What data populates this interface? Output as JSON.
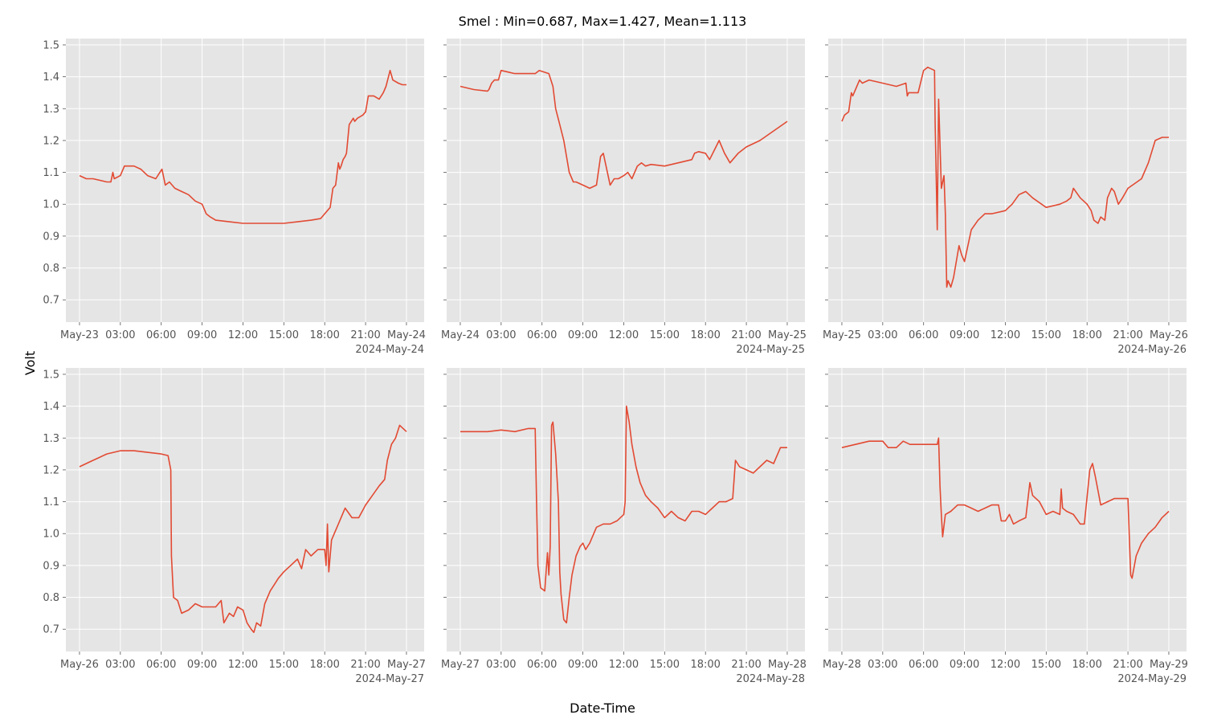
{
  "figure": {
    "title": "Smel : Min=0.687, Max=1.427, Mean=1.113",
    "xlabel": "Date-Time",
    "ylabel": "Volt"
  },
  "colors": {
    "line": "#E24A33",
    "panel_bg": "#E5E5E5",
    "grid": "#FFFFFF",
    "tick_text": "#555555"
  },
  "chart_data": {
    "type": "line",
    "layout": "2x3 small multiples, shared y axis",
    "ylim": [
      0.63,
      1.52
    ],
    "yticks": [
      0.7,
      0.8,
      0.9,
      1.0,
      1.1,
      1.2,
      1.3,
      1.4,
      1.5
    ],
    "ytick_labels": [
      "0.7",
      "0.8",
      "0.9",
      "1.0",
      "1.1",
      "1.2",
      "1.3",
      "1.4",
      "1.5"
    ],
    "x_unit": "hours since panel start (00:00)",
    "xlim": [
      -1,
      25.3
    ],
    "xticks": [
      0,
      3,
      6,
      9,
      12,
      15,
      18,
      21,
      24
    ],
    "grid": true,
    "panels": [
      {
        "offset_label": "2024-May-24",
        "xtick_labels": [
          "May-23",
          "03:00",
          "06:00",
          "09:00",
          "12:00",
          "15:00",
          "18:00",
          "21:00",
          "May-24"
        ],
        "x": [
          0,
          0.5,
          1,
          2,
          2.3,
          2.45,
          2.55,
          3,
          3.3,
          3.6,
          4,
          4.5,
          5,
          5.6,
          5.9,
          6.05,
          6.3,
          6.6,
          7,
          7.5,
          8,
          8.5,
          9,
          9.3,
          9.6,
          10,
          11,
          12,
          13,
          14,
          15,
          16,
          17,
          17.7,
          18,
          18.4,
          18.6,
          18.8,
          19,
          19.1,
          19.2,
          19.35,
          19.5,
          19.6,
          19.8,
          20.1,
          20.2,
          20.4,
          20.8,
          21,
          21.2,
          21.4,
          21.6,
          22,
          22.3,
          22.5,
          22.8,
          23,
          23.4,
          23.7,
          24
        ],
        "y": [
          1.09,
          1.08,
          1.08,
          1.07,
          1.07,
          1.1,
          1.08,
          1.09,
          1.12,
          1.12,
          1.12,
          1.11,
          1.09,
          1.08,
          1.1,
          1.11,
          1.06,
          1.07,
          1.05,
          1.04,
          1.03,
          1.01,
          1.0,
          0.97,
          0.96,
          0.95,
          0.945,
          0.94,
          0.94,
          0.94,
          0.94,
          0.945,
          0.95,
          0.955,
          0.97,
          0.99,
          1.05,
          1.06,
          1.13,
          1.11,
          1.12,
          1.14,
          1.15,
          1.16,
          1.25,
          1.27,
          1.26,
          1.27,
          1.28,
          1.29,
          1.34,
          1.34,
          1.34,
          1.33,
          1.35,
          1.37,
          1.42,
          1.39,
          1.38,
          1.375,
          1.375
        ]
      },
      {
        "offset_label": "2024-May-25",
        "xtick_labels": [
          "May-24",
          "03:00",
          "06:00",
          "09:00",
          "12:00",
          "15:00",
          "18:00",
          "21:00",
          "May-25"
        ],
        "x": [
          0,
          1,
          2,
          2.1,
          2.3,
          2.5,
          2.8,
          3,
          4,
          5,
          5.5,
          5.8,
          6.5,
          6.8,
          7,
          7.3,
          7.6,
          8,
          8.3,
          8.5,
          9,
          9.5,
          10,
          10.3,
          10.5,
          10.7,
          11,
          11.3,
          11.6,
          12,
          12.3,
          12.6,
          13,
          13.3,
          13.6,
          14,
          15,
          16,
          17,
          17.2,
          17.5,
          18,
          18.3,
          19,
          19.4,
          19.8,
          20.4,
          21,
          22,
          23,
          24
        ],
        "y": [
          1.37,
          1.36,
          1.355,
          1.36,
          1.38,
          1.39,
          1.39,
          1.42,
          1.41,
          1.41,
          1.41,
          1.42,
          1.41,
          1.37,
          1.3,
          1.25,
          1.2,
          1.1,
          1.07,
          1.07,
          1.06,
          1.05,
          1.06,
          1.15,
          1.16,
          1.12,
          1.06,
          1.08,
          1.08,
          1.09,
          1.1,
          1.08,
          1.12,
          1.13,
          1.12,
          1.125,
          1.12,
          1.13,
          1.14,
          1.16,
          1.165,
          1.16,
          1.14,
          1.2,
          1.16,
          1.13,
          1.16,
          1.18,
          1.2,
          1.23,
          1.26
        ]
      },
      {
        "offset_label": "2024-May-26",
        "xtick_labels": [
          "May-25",
          "03:00",
          "06:00",
          "09:00",
          "12:00",
          "15:00",
          "18:00",
          "21:00",
          "May-26"
        ],
        "x": [
          0,
          0.2,
          0.5,
          0.7,
          0.8,
          1.0,
          1.3,
          1.5,
          2,
          3,
          4,
          4.7,
          4.8,
          4.9,
          5.1,
          5.3,
          5.6,
          6,
          6.3,
          6.8,
          6.85,
          7,
          7.1,
          7.3,
          7.5,
          7.6,
          7.7,
          7.8,
          8,
          8.2,
          8.4,
          8.6,
          8.8,
          9,
          9.2,
          9.5,
          10,
          10.5,
          11,
          12,
          12.5,
          13,
          13.5,
          14,
          15,
          16,
          16.5,
          16.8,
          17,
          17.5,
          18,
          18.3,
          18.5,
          18.8,
          19,
          19.3,
          19.5,
          19.8,
          20,
          20.3,
          20.6,
          21,
          22,
          22.5,
          23,
          23.5,
          24
        ],
        "y": [
          1.26,
          1.28,
          1.29,
          1.35,
          1.34,
          1.36,
          1.39,
          1.38,
          1.39,
          1.38,
          1.37,
          1.38,
          1.34,
          1.35,
          1.35,
          1.35,
          1.35,
          1.42,
          1.43,
          1.42,
          1.25,
          0.92,
          1.33,
          1.05,
          1.09,
          0.97,
          0.74,
          0.76,
          0.74,
          0.77,
          0.82,
          0.87,
          0.84,
          0.82,
          0.86,
          0.92,
          0.95,
          0.97,
          0.97,
          0.98,
          1.0,
          1.03,
          1.04,
          1.02,
          0.99,
          1.0,
          1.01,
          1.02,
          1.05,
          1.02,
          1.0,
          0.98,
          0.95,
          0.94,
          0.96,
          0.95,
          1.02,
          1.05,
          1.04,
          1.0,
          1.02,
          1.05,
          1.08,
          1.13,
          1.2,
          1.21,
          1.21
        ]
      },
      {
        "offset_label": "2024-May-27",
        "xtick_labels": [
          "May-26",
          "03:00",
          "06:00",
          "09:00",
          "12:00",
          "15:00",
          "18:00",
          "21:00",
          "May-27"
        ],
        "x": [
          0,
          0.5,
          1,
          1.5,
          2,
          3,
          4,
          5,
          6,
          6.5,
          6.7,
          6.75,
          6.9,
          7.2,
          7.5,
          8,
          8.5,
          9,
          9.5,
          10,
          10.4,
          10.6,
          11,
          11.3,
          11.6,
          12,
          12.3,
          12.6,
          12.8,
          13,
          13.3,
          13.6,
          14,
          14.3,
          14.6,
          15,
          15.5,
          16,
          16.3,
          16.6,
          17,
          17.5,
          18,
          18.1,
          18.2,
          18.3,
          18.5,
          19,
          19.5,
          20,
          20.5,
          21,
          21.5,
          22,
          22.4,
          22.6,
          22.9,
          23.2,
          23.5,
          24
        ],
        "y": [
          1.21,
          1.22,
          1.23,
          1.24,
          1.25,
          1.26,
          1.26,
          1.255,
          1.25,
          1.245,
          1.2,
          0.93,
          0.8,
          0.79,
          0.75,
          0.76,
          0.78,
          0.77,
          0.77,
          0.77,
          0.79,
          0.72,
          0.75,
          0.74,
          0.77,
          0.76,
          0.72,
          0.7,
          0.69,
          0.72,
          0.71,
          0.78,
          0.82,
          0.84,
          0.86,
          0.88,
          0.9,
          0.92,
          0.89,
          0.95,
          0.93,
          0.95,
          0.95,
          0.9,
          1.03,
          0.88,
          0.98,
          1.03,
          1.08,
          1.05,
          1.05,
          1.09,
          1.12,
          1.15,
          1.17,
          1.23,
          1.28,
          1.3,
          1.34,
          1.32
        ]
      },
      {
        "offset_label": "2024-May-28",
        "xtick_labels": [
          "May-27",
          "03:00",
          "06:00",
          "09:00",
          "12:00",
          "15:00",
          "18:00",
          "21:00",
          "May-28"
        ],
        "x": [
          0,
          0.5,
          1,
          2,
          3,
          4,
          5,
          5.5,
          5.6,
          5.7,
          5.9,
          6.2,
          6.4,
          6.5,
          6.6,
          6.7,
          6.8,
          7.0,
          7.2,
          7.3,
          7.4,
          7.6,
          7.8,
          8.0,
          8.2,
          8.5,
          8.8,
          9,
          9.2,
          9.5,
          10,
          10.5,
          11,
          11.5,
          12,
          12.1,
          12.2,
          12.4,
          12.6,
          12.9,
          13.2,
          13.6,
          14,
          14.5,
          15,
          15.5,
          16,
          16.5,
          17,
          17.5,
          18,
          18.5,
          19,
          19.5,
          20,
          20.2,
          20.5,
          21,
          21.5,
          22,
          22.5,
          23,
          23.5,
          24
        ],
        "y": [
          1.32,
          1.32,
          1.32,
          1.32,
          1.325,
          1.32,
          1.33,
          1.33,
          1.1,
          0.9,
          0.83,
          0.82,
          0.94,
          0.87,
          0.96,
          1.34,
          1.35,
          1.25,
          1.1,
          0.88,
          0.81,
          0.73,
          0.72,
          0.8,
          0.87,
          0.93,
          0.96,
          0.97,
          0.95,
          0.97,
          1.02,
          1.03,
          1.03,
          1.04,
          1.06,
          1.1,
          1.4,
          1.35,
          1.28,
          1.21,
          1.16,
          1.12,
          1.1,
          1.08,
          1.05,
          1.07,
          1.05,
          1.04,
          1.07,
          1.07,
          1.06,
          1.08,
          1.1,
          1.1,
          1.11,
          1.23,
          1.21,
          1.2,
          1.19,
          1.21,
          1.23,
          1.22,
          1.27,
          1.27
        ]
      },
      {
        "offset_label": "2024-May-29",
        "xtick_labels": [
          "May-28",
          "03:00",
          "06:00",
          "09:00",
          "12:00",
          "15:00",
          "18:00",
          "21:00",
          "May-29"
        ],
        "x": [
          0,
          1,
          2,
          3,
          3.4,
          4,
          4.5,
          5,
          6,
          7,
          7.1,
          7.2,
          7.3,
          7.4,
          7.6,
          8,
          8.5,
          9,
          9.5,
          10,
          11,
          11.5,
          11.7,
          12,
          12.3,
          12.6,
          13,
          13.5,
          13.8,
          14,
          14.5,
          15,
          15.5,
          16,
          16.1,
          16.2,
          16.5,
          17,
          17.5,
          17.8,
          18.2,
          18.4,
          18.6,
          19,
          19.5,
          20,
          20.5,
          21,
          21.2,
          21.3,
          21.6,
          22,
          22.5,
          23,
          23.5,
          24
        ],
        "y": [
          1.27,
          1.28,
          1.29,
          1.29,
          1.27,
          1.27,
          1.29,
          1.28,
          1.28,
          1.28,
          1.3,
          1.15,
          1.06,
          0.99,
          1.06,
          1.07,
          1.09,
          1.09,
          1.08,
          1.07,
          1.09,
          1.09,
          1.04,
          1.04,
          1.06,
          1.03,
          1.04,
          1.05,
          1.16,
          1.12,
          1.1,
          1.06,
          1.07,
          1.06,
          1.14,
          1.08,
          1.07,
          1.06,
          1.03,
          1.03,
          1.2,
          1.22,
          1.18,
          1.09,
          1.1,
          1.11,
          1.11,
          1.11,
          0.87,
          0.86,
          0.93,
          0.97,
          1.0,
          1.02,
          1.05,
          1.07
        ]
      }
    ]
  }
}
